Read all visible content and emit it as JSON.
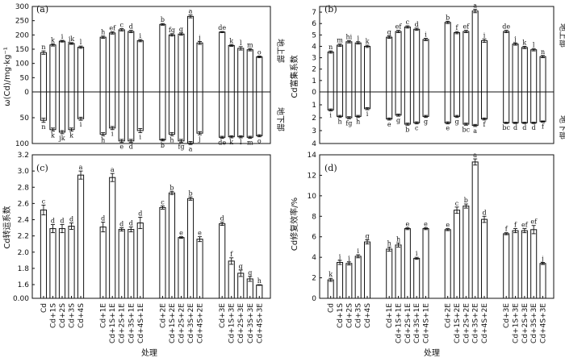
{
  "categories": [
    "Cd",
    "Cd+1S",
    "Cd+2S",
    "Cd+3S",
    "Cd+4S",
    "Cd+1E",
    "Cd+1S+1E",
    "Cd+2S+1E",
    "Cd+3S+1E",
    "Cd+4S+1E",
    "Cd+2E",
    "Cd+1S+2E",
    "Cd+2S+2E",
    "Cd+3S+2E",
    "Cd+4S+2E",
    "Cd+3E",
    "Cd+1S+3E",
    "Cd+2S+3E",
    "Cd+3S+3E",
    "Cd+4S+3E"
  ],
  "xlabel": "处理",
  "side_labels": {
    "above": "地上部",
    "below": "地下部"
  },
  "chart_data": [
    {
      "id": "a",
      "panel_label": "(a)",
      "type": "bar",
      "ylabel": "ω(Cd)/mg·kg⁻¹",
      "ylim_top": [
        0,
        300
      ],
      "ylim_bottom": [
        0,
        100
      ],
      "yticks_top": [
        "0",
        "50",
        "100",
        "150",
        "200",
        "250",
        "300"
      ],
      "yticks_bottom": [
        "50",
        "100"
      ],
      "series": [
        {
          "name": "地上部",
          "values": [
            138,
            165,
            178,
            170,
            157,
            192,
            207,
            218,
            212,
            180,
            237,
            200,
            203,
            265,
            172,
            210,
            163,
            153,
            148,
            123
          ],
          "errors": [
            6,
            4,
            3,
            3,
            4,
            4,
            4,
            4,
            4,
            4,
            3,
            4,
            4,
            5,
            5,
            2,
            3,
            6,
            4,
            3
          ],
          "letters": [
            "n",
            "k",
            "i",
            "jk",
            "l",
            "h",
            "ef",
            "c",
            "d",
            "i",
            "b",
            "fg",
            "g",
            "a",
            "j",
            "de",
            "k",
            "l",
            "m",
            "o"
          ]
        },
        {
          "name": "地下部",
          "values": [
            55,
            73,
            78,
            73,
            52,
            82,
            70,
            95,
            95,
            75,
            93,
            82,
            95,
            99,
            80,
            88,
            87,
            87,
            88,
            85
          ],
          "errors": [
            4,
            3,
            3,
            3,
            3,
            3,
            3,
            3,
            3,
            4,
            2,
            3,
            3,
            3,
            3,
            2,
            2,
            2,
            2,
            2
          ],
          "letters": [
            "n",
            "k",
            "jk",
            "k",
            "i",
            "h",
            "i",
            "e",
            "d",
            "i",
            "b",
            "h",
            "fg",
            "a",
            "j",
            "de",
            "k",
            "l",
            "m",
            "o"
          ]
        }
      ]
    },
    {
      "id": "b",
      "panel_label": "(b)",
      "type": "bar",
      "ylabel": "Cd富集系数",
      "ylim_top": [
        0,
        7.5
      ],
      "ylim_bottom": [
        0,
        4
      ],
      "yticks_top": [
        "0",
        "1",
        "2",
        "3",
        "4",
        "5",
        "6",
        "7"
      ],
      "yticks_bottom": [
        "1",
        "2",
        "3",
        "4"
      ],
      "series": [
        {
          "name": "地上部",
          "values": [
            3.5,
            4.1,
            4.4,
            4.3,
            4.0,
            4.8,
            5.3,
            5.7,
            5.5,
            4.6,
            6.1,
            5.2,
            5.3,
            7.1,
            4.5,
            5.3,
            4.2,
            3.9,
            3.7,
            3.1
          ],
          "errors": [
            0.1,
            0.1,
            0.1,
            0.1,
            0.1,
            0.1,
            0.1,
            0.1,
            0.1,
            0.1,
            0.1,
            0.1,
            0.1,
            0.15,
            0.15,
            0.1,
            0.1,
            0.1,
            0.1,
            0.1
          ],
          "letters": [
            "n",
            "m",
            "hi",
            "j",
            "k",
            "g",
            "ef",
            "c",
            "d",
            "i",
            "b",
            "f",
            "ef",
            "a",
            "i",
            "de",
            "j",
            "k",
            "l",
            "n"
          ]
        },
        {
          "name": "地下部",
          "values": [
            1.4,
            1.9,
            2.0,
            1.9,
            1.3,
            2.1,
            1.8,
            2.5,
            2.4,
            1.9,
            2.4,
            1.9,
            2.5,
            2.6,
            2.1,
            2.4,
            2.4,
            2.4,
            2.4,
            2.3
          ],
          "errors": [
            0.08,
            0.08,
            0.08,
            0.08,
            0.08,
            0.08,
            0.08,
            0.08,
            0.08,
            0.08,
            0.08,
            0.08,
            0.08,
            0.08,
            0.08,
            0.05,
            0.05,
            0.05,
            0.05,
            0.05
          ],
          "letters": [
            "i",
            "h",
            "fg",
            "h",
            "i",
            "e",
            "g",
            "b",
            "c",
            "g",
            "e",
            "g",
            "bc",
            "a",
            "f",
            "bc",
            "d",
            "d",
            "d",
            "f"
          ]
        }
      ]
    },
    {
      "id": "c",
      "panel_label": "(c)",
      "type": "bar",
      "ylabel": "Cd转运系数",
      "ylim": [
        0,
        3.2
      ],
      "yticks": [
        "0.00",
        "1.6",
        "1.8",
        "2.0",
        "2.2",
        "2.4",
        "2.6",
        "2.8",
        "3.0",
        "3.2"
      ],
      "values": [
        2.52,
        2.29,
        2.29,
        2.32,
        2.95,
        2.31,
        2.92,
        2.28,
        2.28,
        2.36,
        2.55,
        2.73,
        2.18,
        2.66,
        2.16,
        2.35,
        1.89,
        1.74,
        1.67,
        1.55
      ],
      "errors": [
        0.06,
        0.05,
        0.05,
        0.04,
        0.05,
        0.06,
        0.05,
        0.02,
        0.03,
        0.07,
        0.02,
        0.02,
        0.01,
        0.02,
        0.03,
        0.02,
        0.04,
        0.04,
        0.03,
        0.04
      ],
      "letters": [
        "c",
        "d",
        "d",
        "d",
        "a",
        "d",
        "a",
        "d",
        "d",
        "d",
        "c",
        "b",
        "e",
        "b",
        "e",
        "d",
        "f",
        "g",
        "g",
        "h"
      ]
    },
    {
      "id": "d",
      "panel_label": "(d)",
      "type": "bar",
      "ylabel": "Cd修复效率/%",
      "ylim": [
        0,
        14
      ],
      "yticks": [
        "0",
        "2",
        "4",
        "6",
        "8",
        "10",
        "12",
        "14"
      ],
      "values": [
        1.8,
        3.5,
        3.4,
        4.1,
        5.5,
        4.8,
        5.2,
        6.8,
        3.9,
        6.8,
        6.7,
        8.6,
        9.0,
        13.3,
        7.7,
        6.3,
        6.6,
        6.6,
        6.7,
        3.4
      ],
      "errors": [
        0.15,
        0.2,
        0.15,
        0.15,
        0.2,
        0.2,
        0.2,
        0.1,
        0.1,
        0.1,
        0.1,
        0.3,
        0.2,
        0.3,
        0.3,
        0.1,
        0.2,
        0.2,
        0.4,
        0.1
      ],
      "letters": [
        "k",
        "j",
        "j",
        "i",
        "g",
        "h",
        "h",
        "e",
        "i",
        "e",
        "e",
        "c",
        "b",
        "a",
        "d",
        "f",
        "f",
        "ef",
        "ef",
        "j"
      ]
    }
  ]
}
